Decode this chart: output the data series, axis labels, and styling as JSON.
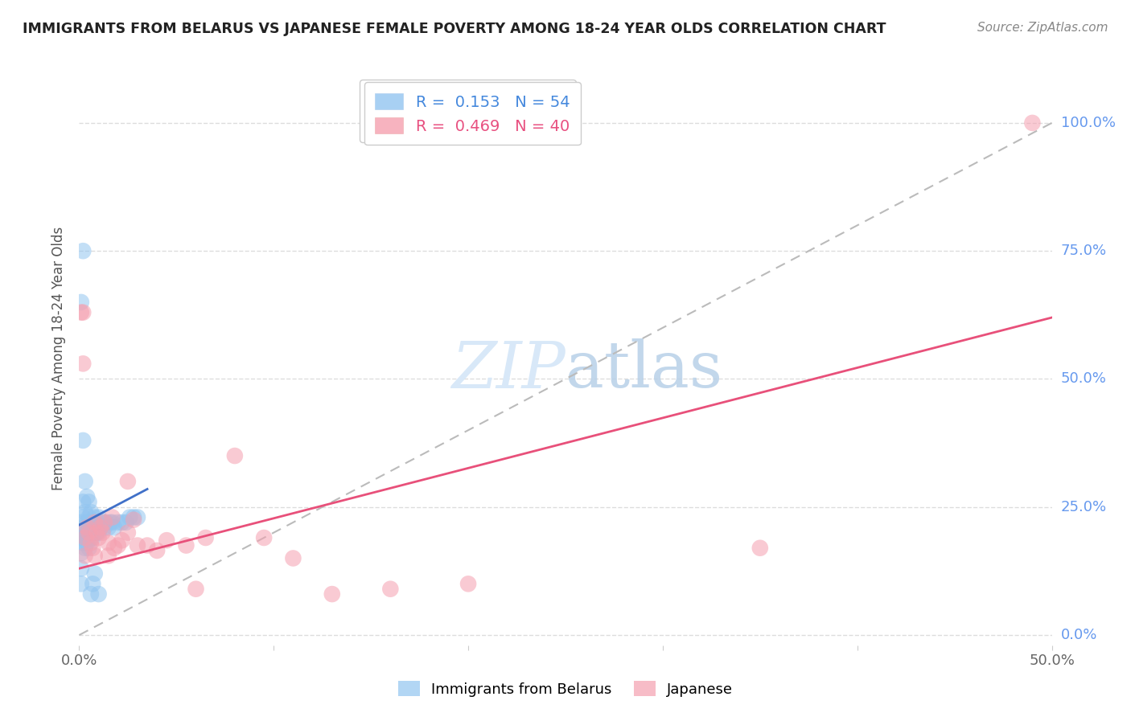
{
  "title": "IMMIGRANTS FROM BELARUS VS JAPANESE FEMALE POVERTY AMONG 18-24 YEAR OLDS CORRELATION CHART",
  "source": "Source: ZipAtlas.com",
  "ylabel": "Female Poverty Among 18-24 Year Olds",
  "color_blue": "#92C5F0",
  "color_pink": "#F5A0B0",
  "color_blue_line": "#4070C8",
  "color_pink_line": "#E8507A",
  "color_dashed": "#BBBBBB",
  "watermark_color": "#D8E8F8",
  "legend_r1": "R =  0.153",
  "legend_n1": "N = 54",
  "legend_r2": "R =  0.469",
  "legend_n2": "N = 40",
  "legend_color1": "#4488DD",
  "legend_color2": "#E85080",
  "xlim": [
    0.0,
    0.5
  ],
  "ylim": [
    -0.02,
    1.1
  ],
  "yticks": [
    0.0,
    0.25,
    0.5,
    0.75,
    1.0
  ],
  "ytick_labels": [
    "0.0%",
    "25.0%",
    "50.0%",
    "75.0%",
    "100.0%"
  ],
  "xtick_positions": [
    0.0,
    0.1,
    0.2,
    0.3,
    0.4,
    0.5
  ],
  "xtick_labels": [
    "0.0%",
    "",
    "",
    "",
    "",
    "50.0%"
  ],
  "blue_line_x": [
    0.0,
    0.035
  ],
  "blue_line_y": [
    0.215,
    0.285
  ],
  "pink_line_x": [
    0.0,
    0.5
  ],
  "pink_line_y": [
    0.13,
    0.62
  ],
  "dashed_line_x": [
    0.0,
    0.5
  ],
  "dashed_line_y": [
    0.0,
    1.0
  ],
  "blue_x": [
    0.001,
    0.001,
    0.001,
    0.001,
    0.001,
    0.002,
    0.002,
    0.002,
    0.002,
    0.002,
    0.003,
    0.003,
    0.003,
    0.003,
    0.004,
    0.004,
    0.004,
    0.005,
    0.005,
    0.005,
    0.006,
    0.006,
    0.006,
    0.007,
    0.007,
    0.008,
    0.008,
    0.009,
    0.009,
    0.01,
    0.01,
    0.011,
    0.012,
    0.013,
    0.014,
    0.015,
    0.016,
    0.017,
    0.018,
    0.02,
    0.022,
    0.024,
    0.026,
    0.028,
    0.03,
    0.001,
    0.002,
    0.003,
    0.004,
    0.005,
    0.006,
    0.007,
    0.008,
    0.01
  ],
  "blue_y": [
    0.1,
    0.13,
    0.16,
    0.19,
    0.22,
    0.18,
    0.2,
    0.23,
    0.26,
    0.75,
    0.17,
    0.19,
    0.21,
    0.24,
    0.18,
    0.2,
    0.22,
    0.17,
    0.2,
    0.23,
    0.19,
    0.21,
    0.24,
    0.19,
    0.22,
    0.2,
    0.23,
    0.2,
    0.22,
    0.2,
    0.23,
    0.21,
    0.22,
    0.21,
    0.22,
    0.21,
    0.22,
    0.22,
    0.21,
    0.22,
    0.22,
    0.22,
    0.23,
    0.23,
    0.23,
    0.65,
    0.38,
    0.3,
    0.27,
    0.26,
    0.08,
    0.1,
    0.12,
    0.08
  ],
  "pink_x": [
    0.001,
    0.002,
    0.002,
    0.003,
    0.004,
    0.005,
    0.006,
    0.007,
    0.008,
    0.009,
    0.01,
    0.011,
    0.012,
    0.013,
    0.015,
    0.017,
    0.018,
    0.02,
    0.022,
    0.025,
    0.028,
    0.03,
    0.035,
    0.04,
    0.045,
    0.055,
    0.065,
    0.08,
    0.095,
    0.11,
    0.13,
    0.16,
    0.2,
    0.35,
    0.003,
    0.008,
    0.015,
    0.025,
    0.06,
    0.49
  ],
  "pink_y": [
    0.63,
    0.63,
    0.53,
    0.19,
    0.21,
    0.2,
    0.18,
    0.17,
    0.22,
    0.2,
    0.19,
    0.21,
    0.2,
    0.22,
    0.18,
    0.23,
    0.17,
    0.175,
    0.185,
    0.2,
    0.225,
    0.175,
    0.175,
    0.165,
    0.185,
    0.175,
    0.19,
    0.35,
    0.19,
    0.15,
    0.08,
    0.09,
    0.1,
    0.17,
    0.155,
    0.155,
    0.155,
    0.3,
    0.09,
    1.0
  ],
  "background_color": "#FFFFFF",
  "grid_color": "#DDDDDD",
  "title_color": "#222222",
  "ylabel_color": "#555555",
  "tick_label_color_x": "#666666",
  "tick_label_color_right": "#6699EE",
  "source_color": "#888888"
}
